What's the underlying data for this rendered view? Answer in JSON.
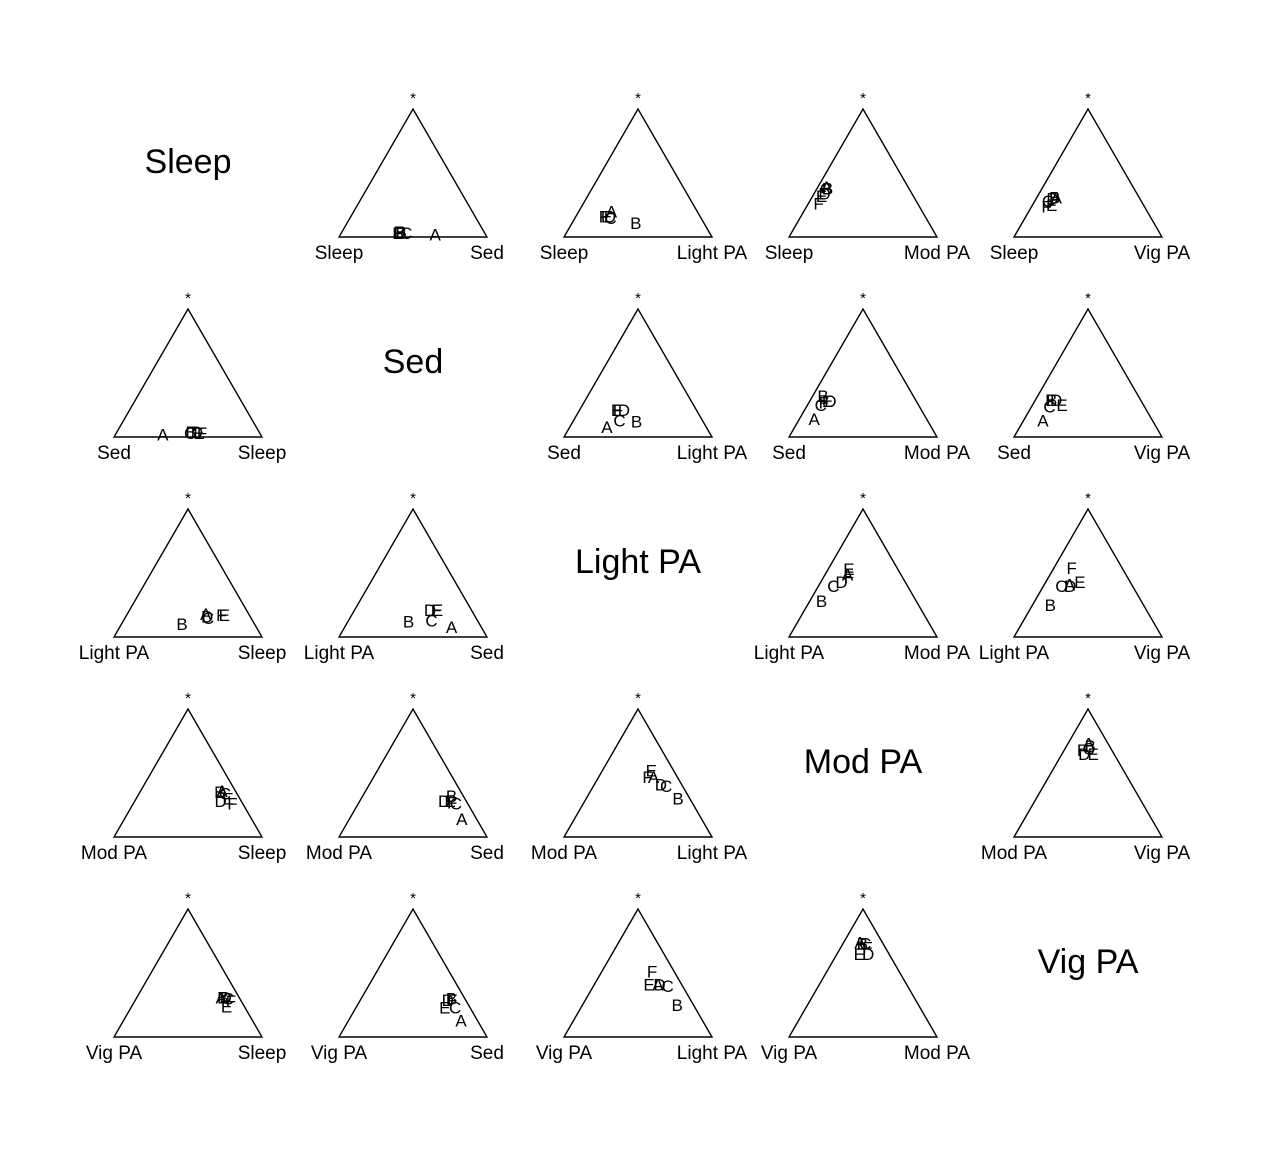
{
  "chart_data": {
    "type": "scatter",
    "variables": [
      "Sleep",
      "Sed",
      "Light PA",
      "Mod PA",
      "Vig PA"
    ],
    "apex_label": "*",
    "panels": [
      {
        "row": 0,
        "col": 1,
        "left": "Sleep",
        "right": "Sed",
        "top": "*",
        "points": [
          {
            "label": "A",
            "l": 0.34,
            "r": 0.64,
            "t": 0.02
          },
          {
            "label": "B",
            "l": 0.56,
            "r": 0.4,
            "t": 0.04
          },
          {
            "label": "C",
            "l": 0.53,
            "r": 0.44,
            "t": 0.03
          },
          {
            "label": "D",
            "l": 0.57,
            "r": 0.39,
            "t": 0.04
          },
          {
            "label": "E",
            "l": 0.58,
            "r": 0.39,
            "t": 0.03
          },
          {
            "label": "F",
            "l": 0.59,
            "r": 0.38,
            "t": 0.03
          }
        ]
      },
      {
        "row": 0,
        "col": 2,
        "left": "Sleep",
        "right": "Light PA",
        "top": "*",
        "points": [
          {
            "label": "A",
            "l": 0.58,
            "r": 0.22,
            "t": 0.2
          },
          {
            "label": "B",
            "l": 0.46,
            "r": 0.43,
            "t": 0.11
          },
          {
            "label": "C",
            "l": 0.61,
            "r": 0.24,
            "t": 0.15
          },
          {
            "label": "D",
            "l": 0.61,
            "r": 0.23,
            "t": 0.16
          },
          {
            "label": "E",
            "l": 0.64,
            "r": 0.21,
            "t": 0.16
          },
          {
            "label": "F",
            "l": 0.65,
            "r": 0.19,
            "t": 0.16
          }
        ]
      },
      {
        "row": 0,
        "col": 3,
        "left": "Sleep",
        "right": "Mod PA",
        "top": "*",
        "points": [
          {
            "label": "A",
            "l": 0.55,
            "r": 0.06,
            "t": 0.39
          },
          {
            "label": "B",
            "l": 0.55,
            "r": 0.07,
            "t": 0.38
          },
          {
            "label": "C",
            "l": 0.56,
            "r": 0.06,
            "t": 0.38
          },
          {
            "label": "D",
            "l": 0.59,
            "r": 0.07,
            "t": 0.34
          },
          {
            "label": "E",
            "l": 0.62,
            "r": 0.06,
            "t": 0.32
          },
          {
            "label": "F",
            "l": 0.67,
            "r": 0.07,
            "t": 0.26
          }
        ]
      },
      {
        "row": 0,
        "col": 4,
        "left": "Sleep",
        "right": "Vig PA",
        "top": "*",
        "points": [
          {
            "label": "A",
            "l": 0.56,
            "r": 0.13,
            "t": 0.31
          },
          {
            "label": "B",
            "l": 0.57,
            "r": 0.12,
            "t": 0.31
          },
          {
            "label": "C",
            "l": 0.63,
            "r": 0.09,
            "t": 0.28
          },
          {
            "label": "D",
            "l": 0.59,
            "r": 0.11,
            "t": 0.3
          },
          {
            "label": "E",
            "l": 0.62,
            "r": 0.13,
            "t": 0.25
          },
          {
            "label": "F",
            "l": 0.66,
            "r": 0.1,
            "t": 0.24
          }
        ]
      },
      {
        "row": 1,
        "col": 0,
        "left": "Sed",
        "right": "Sleep",
        "top": "*",
        "points": [
          {
            "label": "A",
            "l": 0.66,
            "r": 0.32,
            "t": 0.02
          },
          {
            "label": "B",
            "l": 0.46,
            "r": 0.5,
            "t": 0.04
          },
          {
            "label": "C",
            "l": 0.47,
            "r": 0.5,
            "t": 0.03
          },
          {
            "label": "D",
            "l": 0.42,
            "r": 0.54,
            "t": 0.04
          },
          {
            "label": "E",
            "l": 0.41,
            "r": 0.56,
            "t": 0.03
          },
          {
            "label": "F",
            "l": 0.39,
            "r": 0.58,
            "t": 0.03
          }
        ]
      },
      {
        "row": 1,
        "col": 2,
        "left": "Sed",
        "right": "Light PA",
        "top": "*",
        "points": [
          {
            "label": "A",
            "l": 0.67,
            "r": 0.25,
            "t": 0.08
          },
          {
            "label": "B",
            "l": 0.45,
            "r": 0.43,
            "t": 0.12
          },
          {
            "label": "C",
            "l": 0.56,
            "r": 0.31,
            "t": 0.13
          },
          {
            "label": "D",
            "l": 0.49,
            "r": 0.3,
            "t": 0.21
          },
          {
            "label": "E",
            "l": 0.54,
            "r": 0.25,
            "t": 0.21
          },
          {
            "label": "F",
            "l": 0.53,
            "r": 0.26,
            "t": 0.21
          }
        ]
      },
      {
        "row": 1,
        "col": 3,
        "left": "Sed",
        "right": "Mod PA",
        "top": "*",
        "points": [
          {
            "label": "A",
            "l": 0.76,
            "r": 0.1,
            "t": 0.14
          },
          {
            "label": "B",
            "l": 0.61,
            "r": 0.07,
            "t": 0.32
          },
          {
            "label": "C",
            "l": 0.66,
            "r": 0.09,
            "t": 0.25
          },
          {
            "label": "D",
            "l": 0.58,
            "r": 0.14,
            "t": 0.28
          },
          {
            "label": "E",
            "l": 0.6,
            "r": 0.12,
            "t": 0.28
          },
          {
            "label": "F",
            "l": 0.63,
            "r": 0.1,
            "t": 0.27
          }
        ]
      },
      {
        "row": 1,
        "col": 4,
        "left": "Sed",
        "right": "Vig PA",
        "top": "*",
        "points": [
          {
            "label": "A",
            "l": 0.74,
            "r": 0.13,
            "t": 0.13
          },
          {
            "label": "B",
            "l": 0.6,
            "r": 0.11,
            "t": 0.29
          },
          {
            "label": "C",
            "l": 0.64,
            "r": 0.12,
            "t": 0.24
          },
          {
            "label": "D",
            "l": 0.57,
            "r": 0.14,
            "t": 0.29
          },
          {
            "label": "E",
            "l": 0.55,
            "r": 0.2,
            "t": 0.25
          },
          {
            "label": "F",
            "l": 0.61,
            "r": 0.1,
            "t": 0.29
          }
        ]
      },
      {
        "row": 2,
        "col": 0,
        "left": "Light PA",
        "right": "Sleep",
        "top": "*",
        "points": [
          {
            "label": "A",
            "l": 0.29,
            "r": 0.53,
            "t": 0.18
          },
          {
            "label": "B",
            "l": 0.49,
            "r": 0.41,
            "t": 0.1
          },
          {
            "label": "C",
            "l": 0.29,
            "r": 0.56,
            "t": 0.15
          },
          {
            "label": "D",
            "l": 0.29,
            "r": 0.55,
            "t": 0.16
          },
          {
            "label": "E",
            "l": 0.17,
            "r": 0.66,
            "t": 0.17
          },
          {
            "label": "F",
            "l": 0.19,
            "r": 0.64,
            "t": 0.17
          }
        ]
      },
      {
        "row": 2,
        "col": 1,
        "left": "Light PA",
        "right": "Sed",
        "top": "*",
        "points": [
          {
            "label": "A",
            "l": 0.2,
            "r": 0.72,
            "t": 0.08
          },
          {
            "label": "B",
            "l": 0.47,
            "r": 0.41,
            "t": 0.12
          },
          {
            "label": "C",
            "l": 0.31,
            "r": 0.56,
            "t": 0.13
          },
          {
            "label": "D",
            "l": 0.28,
            "r": 0.51,
            "t": 0.21
          },
          {
            "label": "E",
            "l": 0.23,
            "r": 0.56,
            "t": 0.21
          },
          {
            "label": "F",
            "l": 0.24,
            "r": 0.55,
            "t": 0.21
          }
        ]
      },
      {
        "row": 2,
        "col": 3,
        "left": "Light PA",
        "right": "Mod PA",
        "top": "*",
        "points": [
          {
            "label": "A",
            "l": 0.36,
            "r": 0.15,
            "t": 0.49
          },
          {
            "label": "B",
            "l": 0.64,
            "r": 0.08,
            "t": 0.28
          },
          {
            "label": "C",
            "l": 0.5,
            "r": 0.1,
            "t": 0.4
          },
          {
            "label": "D",
            "l": 0.43,
            "r": 0.14,
            "t": 0.43
          },
          {
            "label": "E",
            "l": 0.33,
            "r": 0.14,
            "t": 0.53
          },
          {
            "label": "F",
            "l": 0.36,
            "r": 0.17,
            "t": 0.47
          }
        ]
      },
      {
        "row": 2,
        "col": 4,
        "left": "Light PA",
        "right": "Vig PA",
        "top": "*",
        "points": [
          {
            "label": "A",
            "l": 0.42,
            "r": 0.17,
            "t": 0.41
          },
          {
            "label": "B",
            "l": 0.63,
            "r": 0.12,
            "t": 0.25
          },
          {
            "label": "C",
            "l": 0.48,
            "r": 0.12,
            "t": 0.4
          },
          {
            "label": "D",
            "l": 0.42,
            "r": 0.18,
            "t": 0.4
          },
          {
            "label": "E",
            "l": 0.34,
            "r": 0.23,
            "t": 0.43
          },
          {
            "label": "F",
            "l": 0.34,
            "r": 0.12,
            "t": 0.54
          }
        ]
      },
      {
        "row": 3,
        "col": 0,
        "left": "Mod PA",
        "right": "Sleep",
        "top": "*",
        "points": [
          {
            "label": "A",
            "l": 0.09,
            "r": 0.55,
            "t": 0.36
          },
          {
            "label": "B",
            "l": 0.11,
            "r": 0.54,
            "t": 0.35
          },
          {
            "label": "C",
            "l": 0.08,
            "r": 0.58,
            "t": 0.34
          },
          {
            "label": "D",
            "l": 0.14,
            "r": 0.58,
            "t": 0.28
          },
          {
            "label": "E",
            "l": 0.08,
            "r": 0.62,
            "t": 0.3
          },
          {
            "label": "F",
            "l": 0.07,
            "r": 0.67,
            "t": 0.26
          }
        ]
      },
      {
        "row": 3,
        "col": 1,
        "left": "Mod PA",
        "right": "Sed",
        "top": "*",
        "points": [
          {
            "label": "A",
            "l": 0.1,
            "r": 0.76,
            "t": 0.14
          },
          {
            "label": "B",
            "l": 0.08,
            "r": 0.6,
            "t": 0.32
          },
          {
            "label": "C",
            "l": 0.08,
            "r": 0.66,
            "t": 0.26
          },
          {
            "label": "D",
            "l": 0.15,
            "r": 0.57,
            "t": 0.28
          },
          {
            "label": "E",
            "l": 0.11,
            "r": 0.61,
            "t": 0.28
          },
          {
            "label": "F",
            "l": 0.1,
            "r": 0.63,
            "t": 0.27
          }
        ]
      },
      {
        "row": 3,
        "col": 2,
        "left": "Mod PA",
        "right": "Light PA",
        "top": "*",
        "points": [
          {
            "label": "A",
            "l": 0.16,
            "r": 0.37,
            "t": 0.47
          },
          {
            "label": "B",
            "l": 0.08,
            "r": 0.62,
            "t": 0.3
          },
          {
            "label": "C",
            "l": 0.11,
            "r": 0.49,
            "t": 0.4
          },
          {
            "label": "D",
            "l": 0.14,
            "r": 0.45,
            "t": 0.41
          },
          {
            "label": "E",
            "l": 0.15,
            "r": 0.33,
            "t": 0.52
          },
          {
            "label": "F",
            "l": 0.2,
            "r": 0.33,
            "t": 0.47
          }
        ]
      },
      {
        "row": 3,
        "col": 4,
        "left": "Mod PA",
        "right": "Vig PA",
        "top": "*",
        "points": [
          {
            "label": "A",
            "l": 0.13,
            "r": 0.14,
            "t": 0.73
          },
          {
            "label": "B",
            "l": 0.13,
            "r": 0.16,
            "t": 0.71
          },
          {
            "label": "C",
            "l": 0.15,
            "r": 0.16,
            "t": 0.69
          },
          {
            "label": "D",
            "l": 0.2,
            "r": 0.15,
            "t": 0.65
          },
          {
            "label": "E",
            "l": 0.14,
            "r": 0.21,
            "t": 0.65
          },
          {
            "label": "F",
            "l": 0.2,
            "r": 0.12,
            "t": 0.68
          }
        ]
      },
      {
        "row": 4,
        "col": 0,
        "left": "Vig PA",
        "right": "Sleep",
        "top": "*",
        "points": [
          {
            "label": "A",
            "l": 0.12,
            "r": 0.57,
            "t": 0.31
          },
          {
            "label": "B",
            "l": 0.11,
            "r": 0.58,
            "t": 0.31
          },
          {
            "label": "C",
            "l": 0.08,
            "r": 0.62,
            "t": 0.3
          },
          {
            "label": "D",
            "l": 0.09,
            "r": 0.6,
            "t": 0.31
          },
          {
            "label": "E",
            "l": 0.12,
            "r": 0.64,
            "t": 0.24
          },
          {
            "label": "F",
            "l": 0.07,
            "r": 0.65,
            "t": 0.28
          }
        ]
      },
      {
        "row": 4,
        "col": 1,
        "left": "Vig PA",
        "right": "Sed",
        "top": "*",
        "points": [
          {
            "label": "A",
            "l": 0.11,
            "r": 0.76,
            "t": 0.13
          },
          {
            "label": "B",
            "l": 0.09,
            "r": 0.61,
            "t": 0.3
          },
          {
            "label": "C",
            "l": 0.1,
            "r": 0.67,
            "t": 0.23
          },
          {
            "label": "D",
            "l": 0.12,
            "r": 0.59,
            "t": 0.29
          },
          {
            "label": "E",
            "l": 0.17,
            "r": 0.6,
            "t": 0.23
          },
          {
            "label": "F",
            "l": 0.09,
            "r": 0.62,
            "t": 0.29
          }
        ]
      },
      {
        "row": 4,
        "col": 2,
        "left": "Vig PA",
        "right": "Light PA",
        "top": "*",
        "points": [
          {
            "label": "A",
            "l": 0.16,
            "r": 0.43,
            "t": 0.41
          },
          {
            "label": "B",
            "l": 0.11,
            "r": 0.64,
            "t": 0.25
          },
          {
            "label": "C",
            "l": 0.1,
            "r": 0.5,
            "t": 0.4
          },
          {
            "label": "D",
            "l": 0.15,
            "r": 0.44,
            "t": 0.41
          },
          {
            "label": "E",
            "l": 0.22,
            "r": 0.37,
            "t": 0.41
          },
          {
            "label": "F",
            "l": 0.15,
            "r": 0.34,
            "t": 0.51
          }
        ]
      },
      {
        "row": 4,
        "col": 3,
        "left": "Vig PA",
        "right": "Mod PA",
        "top": "*",
        "points": [
          {
            "label": "A",
            "l": 0.15,
            "r": 0.11,
            "t": 0.74
          },
          {
            "label": "B",
            "l": 0.14,
            "r": 0.13,
            "t": 0.73
          },
          {
            "label": "C",
            "l": 0.12,
            "r": 0.15,
            "t": 0.73
          },
          {
            "label": "D",
            "l": 0.14,
            "r": 0.21,
            "t": 0.65
          },
          {
            "label": "E",
            "l": 0.2,
            "r": 0.15,
            "t": 0.65
          },
          {
            "label": "F",
            "l": 0.12,
            "r": 0.18,
            "t": 0.7
          }
        ]
      }
    ]
  }
}
